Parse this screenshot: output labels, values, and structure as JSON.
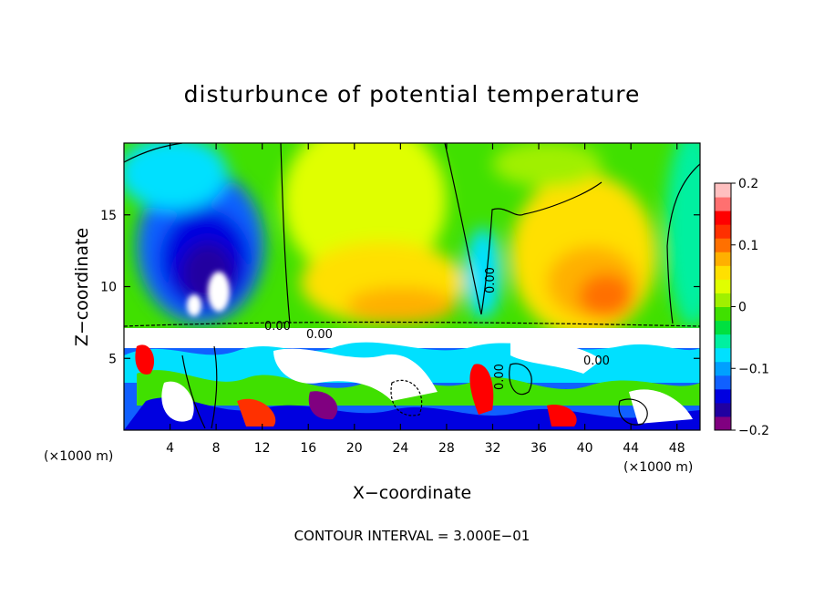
{
  "chart_data": {
    "type": "heatmap",
    "title": "disturbunce of potential temperature",
    "xlabel": "X−coordinate",
    "ylabel": "Z−coordinate",
    "x_unit_left": "(×1000 m)",
    "x_unit_right": "(×1000 m)",
    "xlim": [
      0,
      50
    ],
    "ylim": [
      0,
      20
    ],
    "x_ticks": [
      "4",
      "8",
      "12",
      "16",
      "20",
      "24",
      "28",
      "32",
      "36",
      "40",
      "44",
      "48"
    ],
    "y_ticks": [
      "5",
      "10",
      "15"
    ],
    "colorbar": {
      "range": [
        -0.2,
        0.2
      ],
      "ticks": [
        "0.2",
        "0.1",
        "0",
        "−0.1",
        "−0.2"
      ],
      "colors": [
        "#800080",
        "#2000a0",
        "#0000e0",
        "#1060ff",
        "#00a0ff",
        "#00e0ff",
        "#00f0a0",
        "#00e040",
        "#40e000",
        "#a0f000",
        "#e0ff00",
        "#ffe000",
        "#ffb000",
        "#ff7000",
        "#ff3000",
        "#ff0000",
        "#ff7070",
        "#ffc0c0"
      ]
    },
    "contour_labels": [
      "0.00",
      "0.00",
      "0.00",
      "0.00",
      "0.00"
    ],
    "contour_interval_label": "CONTOUR INTERVAL = 3.000E−01"
  }
}
